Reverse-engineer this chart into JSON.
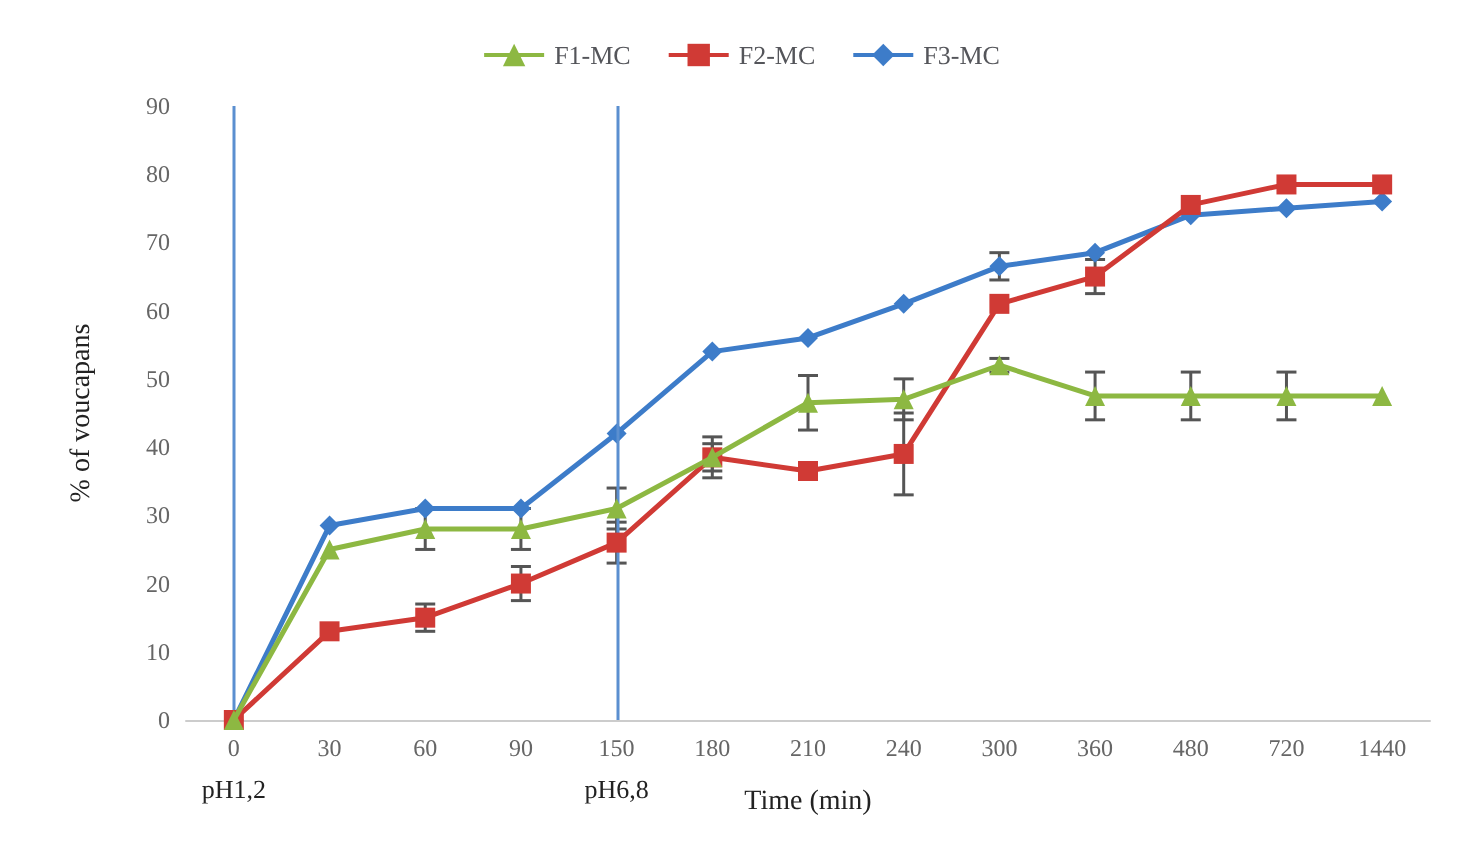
{
  "chart_data": {
    "type": "line",
    "xlabel": "Time (min)",
    "ylabel": "% of voucapans",
    "categories": [
      "0",
      "30",
      "60",
      "90",
      "150",
      "180",
      "210",
      "240",
      "300",
      "360",
      "480",
      "720",
      "1440"
    ],
    "ylim": [
      0,
      90
    ],
    "yticks": [
      0,
      10,
      20,
      30,
      40,
      50,
      60,
      70,
      80,
      90
    ],
    "grid": false,
    "legend": "top",
    "series": [
      {
        "name": "F1-MC",
        "color": "#8db842",
        "marker": "triangle",
        "values": [
          0,
          25,
          28,
          28,
          31,
          38.5,
          46.5,
          47,
          52,
          47.5,
          47.5,
          47.5,
          47.5
        ],
        "errors": [
          null,
          null,
          3,
          3,
          3,
          2,
          4,
          3,
          1,
          3.5,
          3.5,
          3.5,
          null
        ]
      },
      {
        "name": "F2-MC",
        "color": "#d03a35",
        "marker": "square",
        "values": [
          0,
          13,
          15,
          20,
          26,
          38.5,
          36.5,
          39,
          61,
          65,
          75.5,
          78.5,
          78.5
        ],
        "errors": [
          null,
          null,
          2,
          2.5,
          3,
          3,
          null,
          6,
          null,
          2.5,
          null,
          null,
          null
        ]
      },
      {
        "name": "F3-MC",
        "color": "#3d7cc9",
        "marker": "diamond",
        "values": [
          0,
          28.5,
          31,
          31,
          42,
          54,
          56,
          61,
          66.5,
          68.5,
          74,
          75,
          76
        ],
        "errors": [
          null,
          null,
          null,
          null,
          null,
          null,
          null,
          null,
          2,
          null,
          null,
          null,
          null
        ]
      }
    ],
    "ref_lines": [
      {
        "axis": "x",
        "value": "0",
        "label": "pH1,2",
        "color": "#5b8fd0"
      },
      {
        "axis": "x",
        "value": "150",
        "label": "pH6,8",
        "color": "#5b8fd0"
      }
    ]
  }
}
